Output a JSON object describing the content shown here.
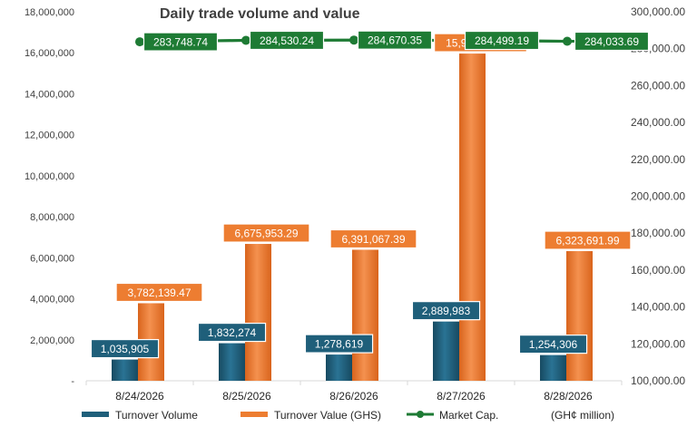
{
  "chart_data": {
    "type": "bar",
    "title": "Daily trade volume and value",
    "categories": [
      "8/24/2026",
      "8/25/2026",
      "8/26/2026",
      "8/27/2026",
      "8/28/2026"
    ],
    "y_left": {
      "min": 0,
      "max": 18000000,
      "step": 2000000,
      "ticks": [
        "-",
        "2,000,000",
        "4,000,000",
        "6,000,000",
        "8,000,000",
        "10,000,000",
        "12,000,000",
        "14,000,000",
        "16,000,000",
        "18,000,000"
      ]
    },
    "y_right": {
      "min": 100000,
      "max": 300000,
      "step": 20000,
      "ticks": [
        "100,000.00",
        "120,000.00",
        "140,000.00",
        "160,000.00",
        "180,000.00",
        "200,000.00",
        "220,000.00",
        "240,000.00",
        "260,000.00",
        "280,000.00",
        "300,000.00"
      ]
    },
    "series": [
      {
        "name": "Turnover Volume",
        "kind": "bar",
        "axis": "left",
        "color": "#1f5f7a",
        "values": [
          1035905,
          1832274,
          1278619,
          2889983,
          1254306
        ],
        "labels": [
          "1,035,905",
          "1,832,274",
          "1,278,619",
          "2,889,983",
          "1,254,306"
        ]
      },
      {
        "name": "Turnover Value (GHS)",
        "kind": "bar",
        "axis": "left",
        "color": "#ed7d31",
        "values": [
          3782139.47,
          6675953.29,
          6391067.39,
          15961752.17,
          6323691.99
        ],
        "labels": [
          "3,782,139.47",
          "6,675,953.29",
          "6,391,067.39",
          "15,961,752.17",
          "6,323,691.99"
        ]
      },
      {
        "name": "Market Cap.",
        "kind": "line",
        "axis": "right",
        "color": "#1e7b34",
        "values": [
          283748.74,
          284530.24,
          284670.35,
          284499.19,
          284033.69
        ],
        "labels": [
          "283,748.74",
          "284,530.24",
          "284,670.35",
          "284,499.19",
          "284,033.69"
        ]
      }
    ],
    "legend": {
      "position": "bottom",
      "items": [
        "Turnover Volume",
        "Turnover Value (GHS)",
        "Market Cap."
      ],
      "note": "(GH¢ million)"
    },
    "grid": false
  }
}
